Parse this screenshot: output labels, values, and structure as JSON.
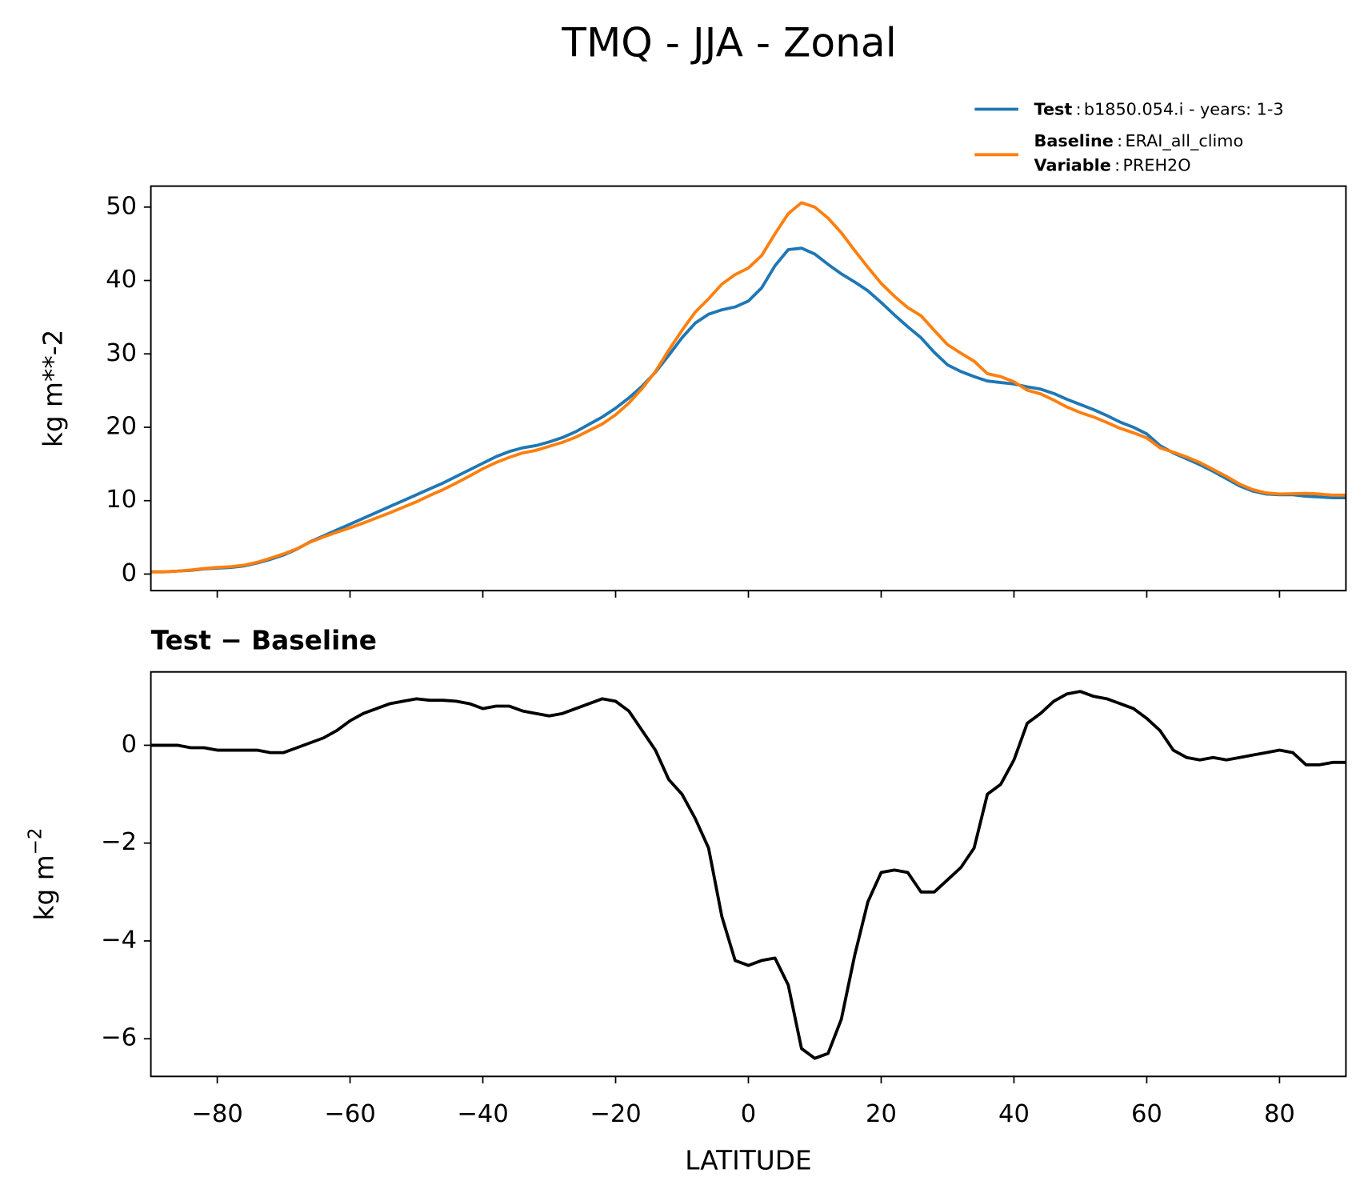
{
  "title": "TMQ - JJA - Zonal",
  "legend": {
    "separator": ":",
    "entries": [
      {
        "label": "Test",
        "text": "b1850.054.i - years: 1-3"
      },
      {
        "label": "Baseline",
        "text": "ERAI_all_climo"
      },
      {
        "label": "Variable",
        "text": "PREH2O"
      }
    ]
  },
  "chart_data": [
    {
      "type": "line",
      "ylabel": "kg m**-2",
      "x": [
        -90,
        -88,
        -86,
        -84,
        -82,
        -80,
        -78,
        -76,
        -74,
        -72,
        -70,
        -68,
        -66,
        -64,
        -62,
        -60,
        -58,
        -56,
        -54,
        -52,
        -50,
        -48,
        -46,
        -44,
        -42,
        -40,
        -38,
        -36,
        -34,
        -32,
        -30,
        -28,
        -26,
        -24,
        -22,
        -20,
        -18,
        -16,
        -14,
        -12,
        -10,
        -8,
        -6,
        -4,
        -2,
        0,
        2,
        4,
        6,
        8,
        10,
        12,
        14,
        16,
        18,
        20,
        22,
        24,
        26,
        28,
        30,
        32,
        34,
        36,
        38,
        40,
        42,
        44,
        46,
        48,
        50,
        52,
        54,
        56,
        58,
        60,
        62,
        64,
        66,
        68,
        70,
        72,
        74,
        76,
        78,
        80,
        82,
        84,
        86,
        88,
        90
      ],
      "series": [
        {
          "name": "Test",
          "color": "#1f77b4",
          "values": [
            0.3,
            0.3,
            0.4,
            0.5,
            0.7,
            0.8,
            0.9,
            1.1,
            1.5,
            2.0,
            2.6,
            3.4,
            4.4,
            5.2,
            6.0,
            6.8,
            7.6,
            8.4,
            9.2,
            10.0,
            10.8,
            11.6,
            12.4,
            13.3,
            14.2,
            15.1,
            16.0,
            16.7,
            17.2,
            17.5,
            18.0,
            18.6,
            19.4,
            20.4,
            21.4,
            22.6,
            24.0,
            25.6,
            27.5,
            29.8,
            32.2,
            34.2,
            35.4,
            36.0,
            36.4,
            37.2,
            39.0,
            42.0,
            44.2,
            44.4,
            43.6,
            42.2,
            40.9,
            39.8,
            38.6,
            37.0,
            35.3,
            33.7,
            32.2,
            30.2,
            28.5,
            27.6,
            26.9,
            26.3,
            26.1,
            25.9,
            25.5,
            25.2,
            24.6,
            23.8,
            23.1,
            22.4,
            21.6,
            20.7,
            20.0,
            19.1,
            17.5,
            16.5,
            15.7,
            14.9,
            14.0,
            13.0,
            12.0,
            11.3,
            10.9,
            10.8,
            10.8,
            10.6,
            10.5,
            10.4,
            10.4
          ]
        },
        {
          "name": "Baseline",
          "color": "#ff7f0e",
          "values": [
            0.3,
            0.3,
            0.4,
            0.55,
            0.75,
            0.9,
            1.0,
            1.2,
            1.6,
            2.15,
            2.75,
            3.45,
            4.35,
            5.05,
            5.7,
            6.3,
            6.95,
            7.65,
            8.35,
            9.1,
            9.85,
            10.7,
            11.5,
            12.4,
            13.35,
            14.35,
            15.2,
            15.9,
            16.5,
            16.85,
            17.4,
            17.95,
            18.65,
            19.55,
            20.45,
            21.7,
            23.3,
            25.3,
            27.6,
            30.5,
            33.2,
            35.7,
            37.5,
            39.5,
            40.8,
            41.7,
            43.4,
            46.35,
            49.1,
            50.6,
            50.0,
            48.5,
            46.5,
            44.1,
            41.8,
            39.6,
            37.85,
            36.3,
            35.2,
            33.2,
            31.25,
            30.1,
            29.0,
            27.3,
            26.9,
            26.2,
            25.05,
            24.55,
            23.7,
            22.75,
            22.0,
            21.4,
            20.65,
            19.85,
            19.25,
            18.55,
            17.2,
            16.6,
            15.95,
            15.2,
            14.25,
            13.3,
            12.25,
            11.5,
            11.05,
            10.9,
            10.95,
            11.0,
            10.9,
            10.75,
            10.75
          ]
        }
      ],
      "xlim": [
        -90,
        90
      ],
      "xticks": [
        -80,
        -60,
        -40,
        -20,
        0,
        20,
        40,
        60,
        80
      ],
      "ylim": [
        -2.26,
        52.86
      ],
      "yticks": [
        0,
        10,
        20,
        30,
        40,
        50
      ],
      "legend": "upper right outside",
      "grid": false
    },
    {
      "type": "line",
      "title": "Test − Baseline",
      "ylabel": "kg m",
      "ylabel_superscript": "−2",
      "xlabel": "LATITUDE",
      "x": [
        -90,
        -88,
        -86,
        -84,
        -82,
        -80,
        -78,
        -76,
        -74,
        -72,
        -70,
        -68,
        -66,
        -64,
        -62,
        -60,
        -58,
        -56,
        -54,
        -52,
        -50,
        -48,
        -46,
        -44,
        -42,
        -40,
        -38,
        -36,
        -34,
        -32,
        -30,
        -28,
        -26,
        -24,
        -22,
        -20,
        -18,
        -16,
        -14,
        -12,
        -10,
        -8,
        -6,
        -4,
        -2,
        0,
        2,
        4,
        6,
        8,
        10,
        12,
        14,
        16,
        18,
        20,
        22,
        24,
        26,
        28,
        30,
        32,
        34,
        36,
        38,
        40,
        42,
        44,
        46,
        48,
        50,
        52,
        54,
        56,
        58,
        60,
        62,
        64,
        66,
        68,
        70,
        72,
        74,
        76,
        78,
        80,
        82,
        84,
        86,
        88,
        90
      ],
      "series": [
        {
          "name": "Test − Baseline",
          "color": "#000000",
          "values": [
            0,
            0,
            0,
            -0.05,
            -0.05,
            -0.1,
            -0.1,
            -0.1,
            -0.1,
            -0.15,
            -0.15,
            -0.05,
            0.05,
            0.15,
            0.3,
            0.5,
            0.65,
            0.75,
            0.85,
            0.9,
            0.95,
            0.92,
            0.92,
            0.9,
            0.85,
            0.75,
            0.8,
            0.8,
            0.7,
            0.65,
            0.6,
            0.65,
            0.75,
            0.85,
            0.95,
            0.9,
            0.7,
            0.3,
            -0.1,
            -0.7,
            -1.0,
            -1.5,
            -2.1,
            -3.5,
            -4.4,
            -4.5,
            -4.4,
            -4.35,
            -4.9,
            -6.2,
            -6.4,
            -6.3,
            -5.6,
            -4.3,
            -3.2,
            -2.6,
            -2.55,
            -2.6,
            -3.0,
            -3.0,
            -2.75,
            -2.5,
            -2.1,
            -1.0,
            -0.8,
            -0.3,
            0.45,
            0.65,
            0.9,
            1.05,
            1.1,
            1.0,
            0.95,
            0.85,
            0.75,
            0.55,
            0.3,
            -0.1,
            -0.25,
            -0.3,
            -0.25,
            -0.3,
            -0.25,
            -0.2,
            -0.15,
            -0.1,
            -0.15,
            -0.4,
            -0.4,
            -0.35,
            -0.35
          ]
        }
      ],
      "xlim": [
        -90,
        90
      ],
      "xticks": [
        {
          "value": -80,
          "label": "−80"
        },
        {
          "value": -60,
          "label": "−60"
        },
        {
          "value": -40,
          "label": "−40"
        },
        {
          "value": -20,
          "label": "−20"
        },
        0,
        20,
        40,
        60,
        80
      ],
      "ylim": [
        -6.77,
        1.5
      ],
      "yticks": [
        {
          "value": -6,
          "label": "−6"
        },
        {
          "value": -4,
          "label": "−4"
        },
        {
          "value": -2,
          "label": "−2"
        },
        0
      ],
      "grid": false
    }
  ]
}
